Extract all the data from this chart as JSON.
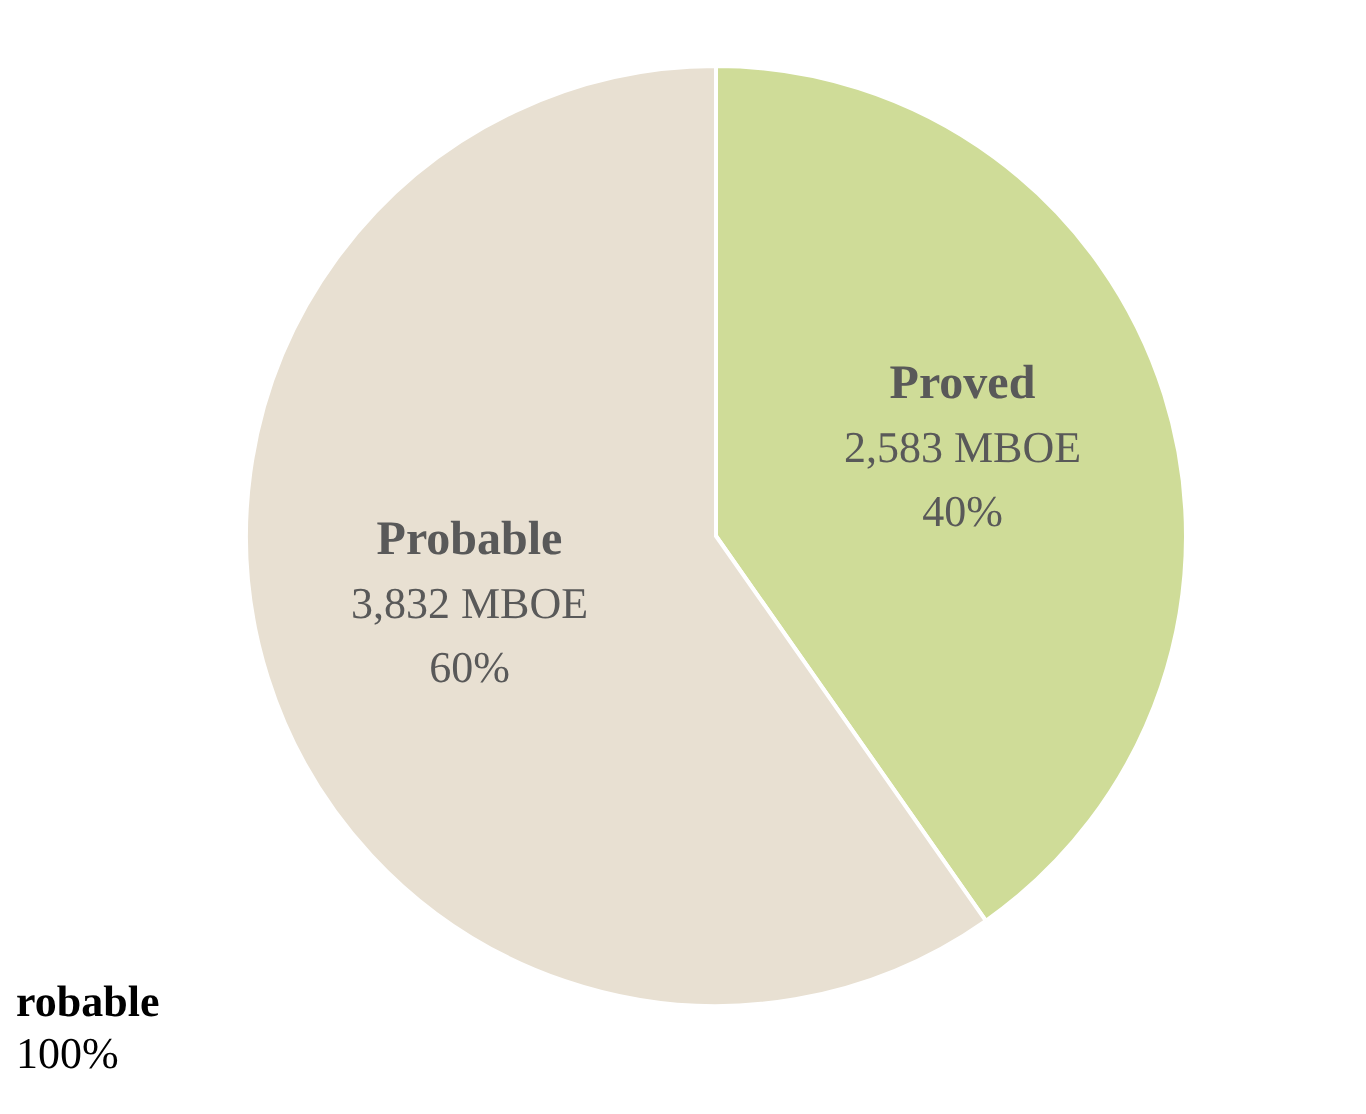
{
  "chart_data": {
    "type": "pie",
    "categories": [
      "Proved",
      "Probable"
    ],
    "values": [
      2583,
      3832
    ],
    "colors": [
      "#cfdc98",
      "#e8e0d2"
    ],
    "value_labels": [
      "2,583 MBOE\n40%",
      "3,832 MBOE\n60%"
    ],
    "annotations": [
      "robable",
      "100%"
    ],
    "legend": false
  }
}
